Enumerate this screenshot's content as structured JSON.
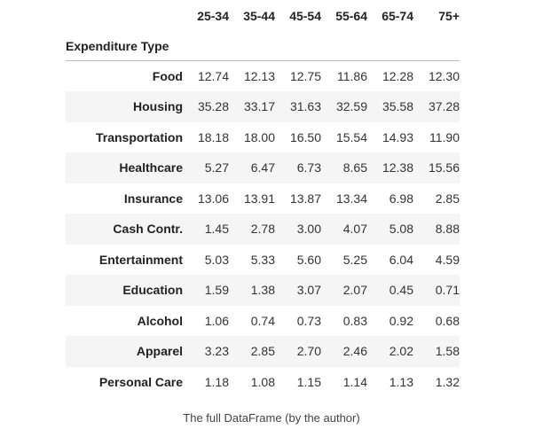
{
  "table": {
    "columns": [
      "25-34",
      "35-44",
      "45-54",
      "55-64",
      "65-74",
      "75+"
    ],
    "index_name": "Expenditure Type",
    "rows": [
      {
        "label": "Food",
        "values": [
          "12.74",
          "12.13",
          "12.75",
          "11.86",
          "12.28",
          "12.30"
        ]
      },
      {
        "label": "Housing",
        "values": [
          "35.28",
          "33.17",
          "31.63",
          "32.59",
          "35.58",
          "37.28"
        ]
      },
      {
        "label": "Transportation",
        "values": [
          "18.18",
          "18.00",
          "16.50",
          "15.54",
          "14.93",
          "11.90"
        ]
      },
      {
        "label": "Healthcare",
        "values": [
          "5.27",
          "6.47",
          "6.73",
          "8.65",
          "12.38",
          "15.56"
        ]
      },
      {
        "label": "Insurance",
        "values": [
          "13.06",
          "13.91",
          "13.87",
          "13.34",
          "6.98",
          "2.85"
        ]
      },
      {
        "label": "Cash Contr.",
        "values": [
          "1.45",
          "2.78",
          "3.00",
          "4.07",
          "5.08",
          "8.88"
        ]
      },
      {
        "label": "Entertainment",
        "values": [
          "5.03",
          "5.33",
          "5.60",
          "5.25",
          "6.04",
          "4.59"
        ]
      },
      {
        "label": "Education",
        "values": [
          "1.59",
          "1.38",
          "3.07",
          "2.07",
          "0.45",
          "0.71"
        ]
      },
      {
        "label": "Alcohol",
        "values": [
          "1.06",
          "0.74",
          "0.73",
          "0.83",
          "0.92",
          "0.68"
        ]
      },
      {
        "label": "Apparel",
        "values": [
          "3.23",
          "2.85",
          "2.70",
          "2.46",
          "2.02",
          "1.58"
        ]
      },
      {
        "label": "Personal Care",
        "values": [
          "1.18",
          "1.08",
          "1.15",
          "1.14",
          "1.13",
          "1.32"
        ]
      }
    ]
  },
  "caption": "The full DataFrame (by the author)"
}
